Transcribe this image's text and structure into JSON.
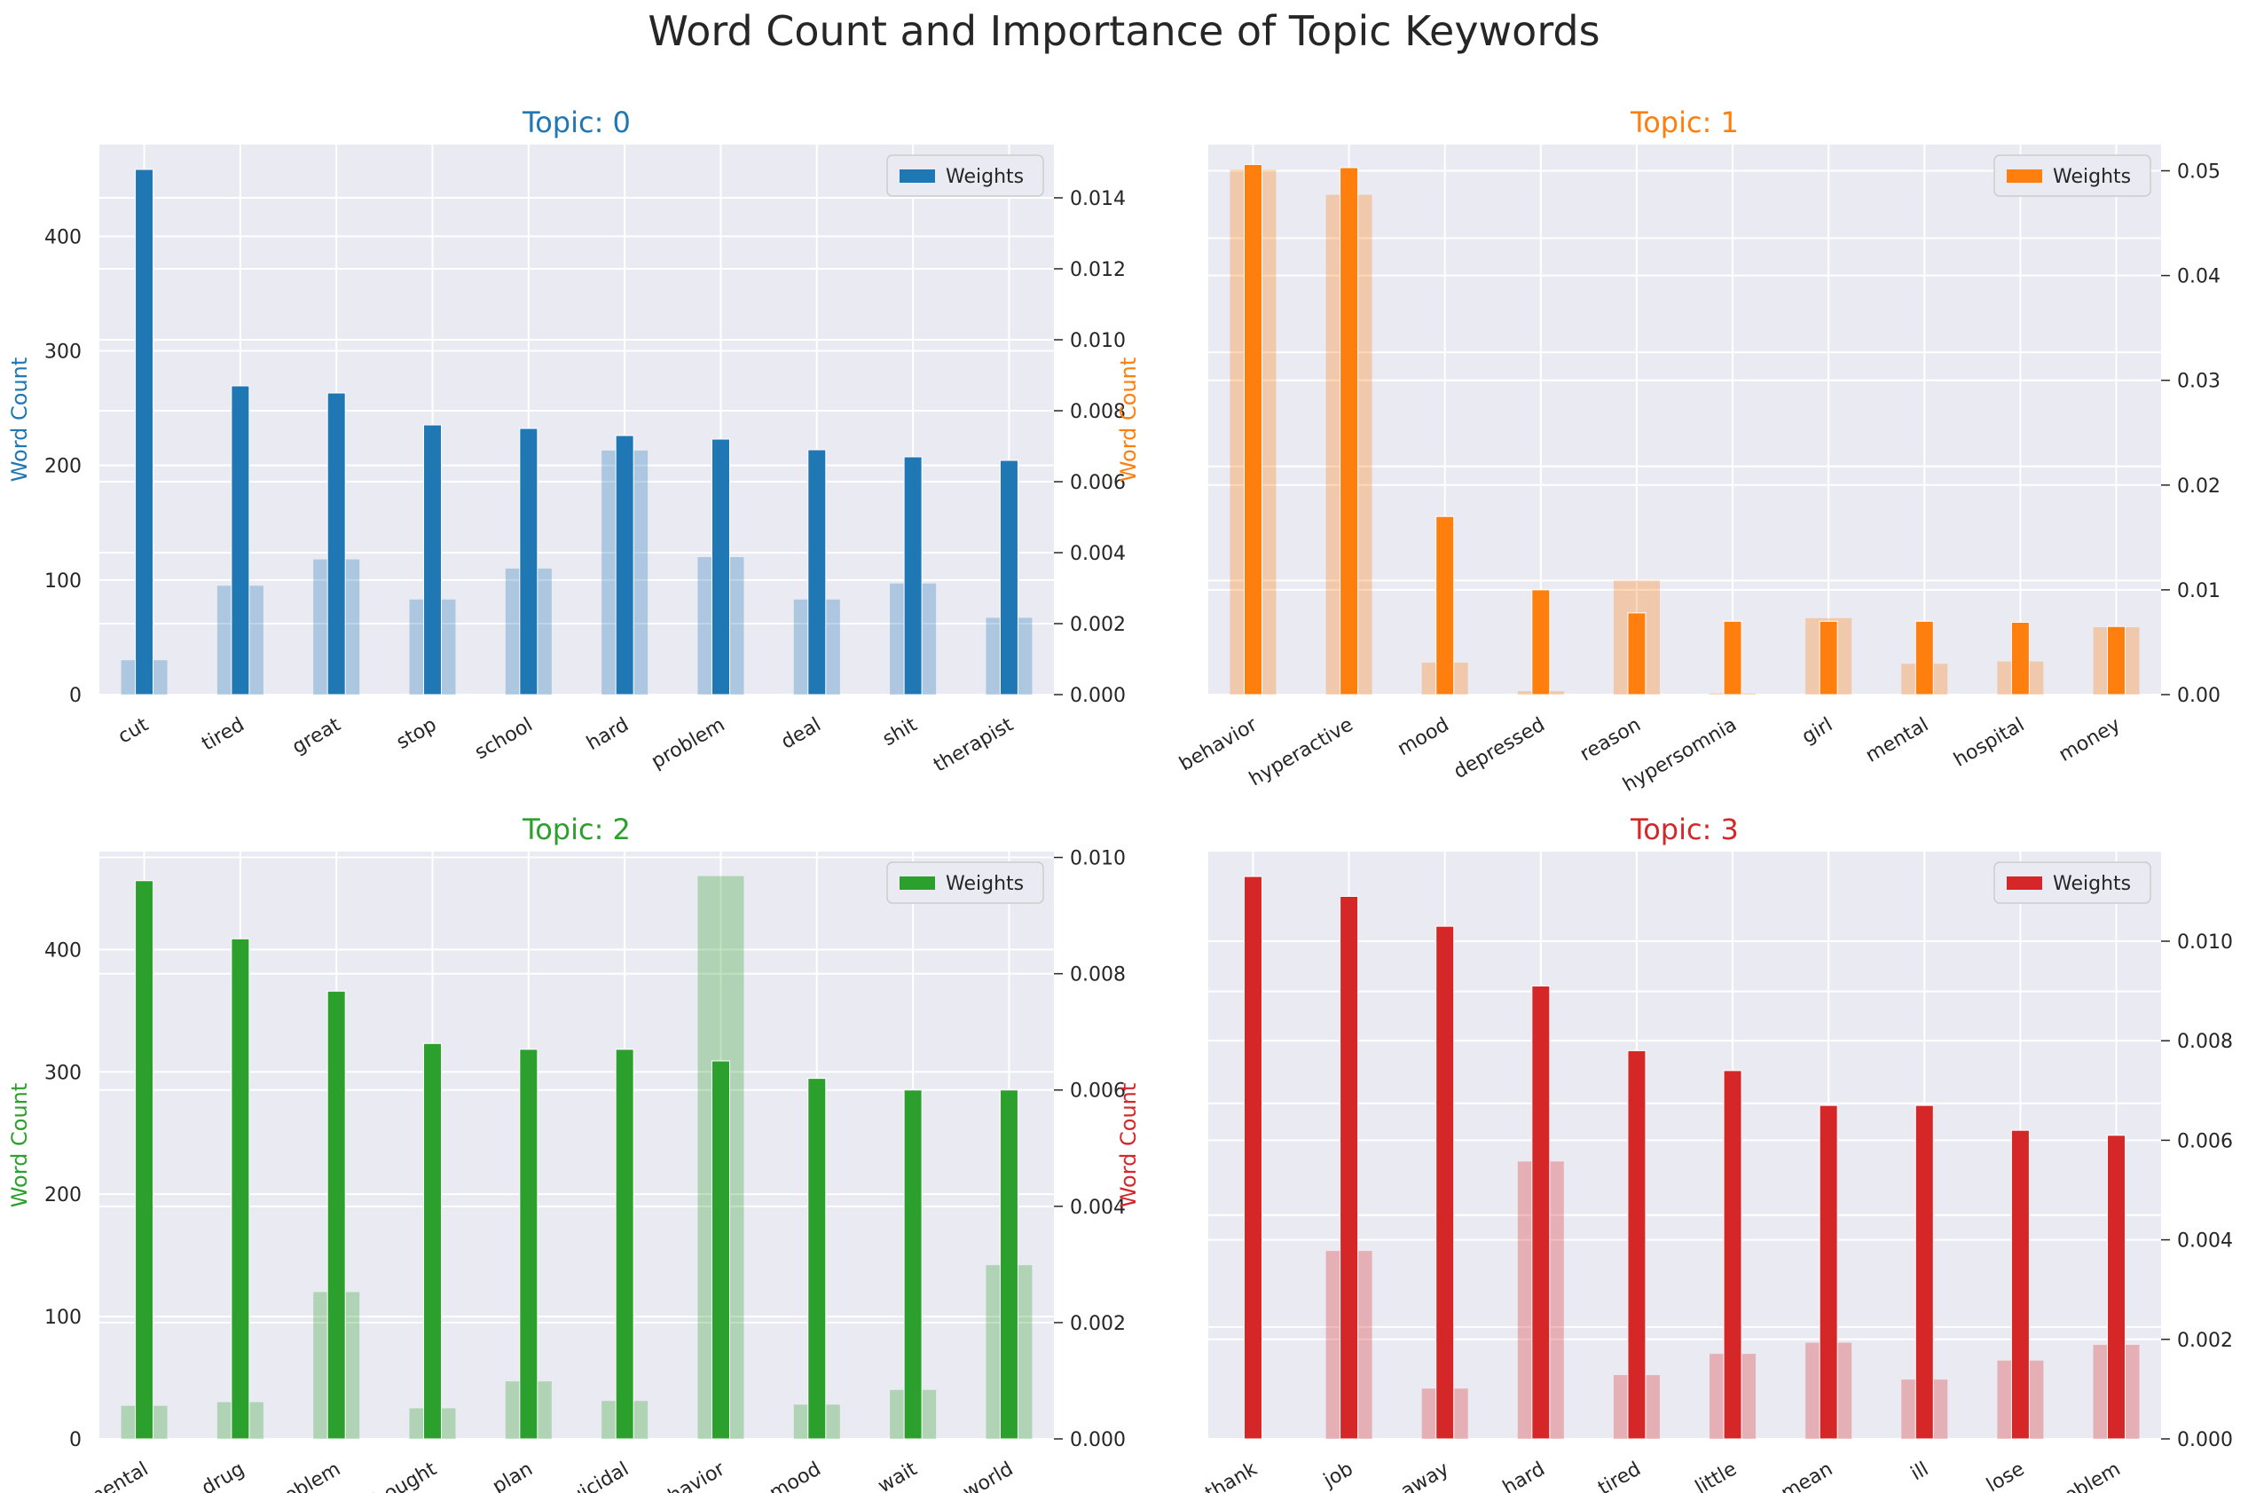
{
  "title": "Word Count and Importance of Topic Keywords",
  "chart_data": [
    {
      "type": "bar",
      "title": "Topic: 0",
      "color": "#1f77b4",
      "categories": [
        "cut",
        "tired",
        "great",
        "stop",
        "school",
        "hard",
        "problem",
        "deal",
        "shit",
        "therapist"
      ],
      "ylabel": "Word Count",
      "ylim": [
        0,
        480
      ],
      "yticks": [
        0,
        100,
        200,
        300,
        400
      ],
      "y2lim": [
        0,
        0.0155
      ],
      "y2ticks": [
        0.0,
        0.002,
        0.004,
        0.006,
        0.008,
        0.01,
        0.012,
        0.014
      ],
      "y2tick_labels": [
        "0.000",
        "0.002",
        "0.004",
        "0.006",
        "0.008",
        "0.010",
        "0.012",
        "0.014"
      ],
      "series": [
        {
          "name": "Word Count",
          "axis": "left",
          "values": [
            30,
            95,
            118,
            83,
            110,
            213,
            120,
            83,
            97,
            67
          ]
        },
        {
          "name": "Weights",
          "axis": "right",
          "values": [
            0.0148,
            0.0087,
            0.0085,
            0.0076,
            0.0075,
            0.0073,
            0.0072,
            0.0069,
            0.0067,
            0.0066
          ]
        }
      ],
      "legend": "Weights",
      "legend_position": "upper-right"
    },
    {
      "type": "bar",
      "title": "Topic: 1",
      "color": "#ff7f0e",
      "categories": [
        "behavior",
        "hyperactive",
        "mood",
        "depressed",
        "reason",
        "hypersomnia",
        "girl",
        "mental",
        "hospital",
        "money"
      ],
      "ylabel": "Word Count",
      "ylim": [
        0,
        482
      ],
      "yticks": [],
      "y2lim": [
        0,
        0.0525
      ],
      "y2ticks": [
        0.0,
        0.01,
        0.02,
        0.03,
        0.04,
        0.05
      ],
      "y2tick_labels": [
        "0.00",
        "0.01",
        "0.02",
        "0.03",
        "0.04",
        "0.05"
      ],
      "series": [
        {
          "name": "Word Count",
          "axis": "left",
          "values": [
            460,
            438,
            28,
            3,
            100,
            1,
            67,
            27,
            29,
            59
          ]
        },
        {
          "name": "Weights",
          "axis": "right",
          "values": [
            0.0506,
            0.0503,
            0.017,
            0.01,
            0.0078,
            0.007,
            0.007,
            0.007,
            0.0069,
            0.0065
          ]
        }
      ],
      "legend": "Weights",
      "legend_position": "upper-right"
    },
    {
      "type": "bar",
      "title": "Topic: 2",
      "color": "#2ca02c",
      "categories": [
        "mental",
        "drug",
        "problem",
        "thought",
        "plan",
        "suicidal",
        "behavior",
        "mood",
        "wait",
        "world"
      ],
      "ylabel": "Word Count",
      "ylim": [
        0,
        480
      ],
      "yticks": [
        0,
        100,
        200,
        300,
        400
      ],
      "y2lim": [
        0,
        0.0101
      ],
      "y2ticks": [
        0.0,
        0.002,
        0.004,
        0.006,
        0.008,
        0.01
      ],
      "y2tick_labels": [
        "0.000",
        "0.002",
        "0.004",
        "0.006",
        "0.008",
        "0.010"
      ],
      "series": [
        {
          "name": "Word Count",
          "axis": "left",
          "values": [
            27,
            30,
            120,
            25,
            47,
            31,
            460,
            28,
            40,
            142
          ]
        },
        {
          "name": "Weights",
          "axis": "right",
          "values": [
            0.0096,
            0.0086,
            0.0077,
            0.0068,
            0.0067,
            0.0067,
            0.0065,
            0.0062,
            0.006,
            0.006
          ]
        }
      ],
      "legend": "Weights",
      "legend_position": "upper-right"
    },
    {
      "type": "bar",
      "title": "Topic: 3",
      "color": "#d62728",
      "categories": [
        "thank",
        "job",
        "away",
        "hard",
        "tired",
        "little",
        "mean",
        "ill",
        "lose",
        "problem"
      ],
      "ylabel": "Word Count",
      "ylim": [
        0,
        525
      ],
      "yticks": [],
      "y2lim": [
        0,
        0.0118
      ],
      "y2ticks": [
        0.0,
        0.002,
        0.004,
        0.006,
        0.008,
        0.01
      ],
      "y2tick_labels": [
        "0.000",
        "0.002",
        "0.004",
        "0.006",
        "0.008",
        "0.010"
      ],
      "series": [
        {
          "name": "Word Count",
          "axis": "left",
          "values": [
            0,
            168,
            45,
            248,
            57,
            76,
            86,
            53,
            70,
            84
          ]
        },
        {
          "name": "Weights",
          "axis": "right",
          "values": [
            0.0113,
            0.0109,
            0.0103,
            0.0091,
            0.0078,
            0.0074,
            0.0067,
            0.0067,
            0.0062,
            0.0061
          ]
        }
      ],
      "legend": "Weights",
      "legend_position": "upper-right"
    }
  ]
}
